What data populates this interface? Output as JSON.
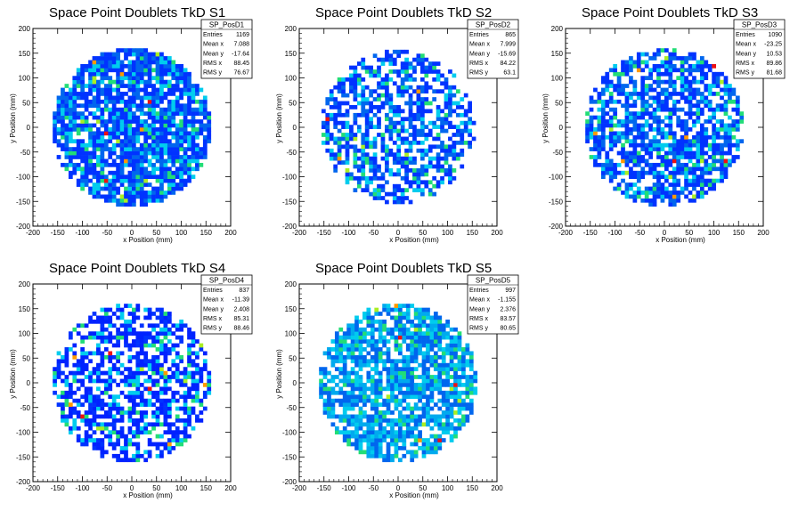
{
  "chart_data": [
    {
      "type": "heatmap",
      "title": "Space Point Doublets TkD S1",
      "stats_name": "SP_PosD1",
      "stats": [
        {
          "label": "Entries",
          "value": "1169"
        },
        {
          "label": "Mean x",
          "value": "7.088"
        },
        {
          "label": "Mean y",
          "value": "-17.64"
        },
        {
          "label": "RMS x",
          "value": "88.45"
        },
        {
          "label": "RMS y",
          "value": "76.67"
        }
      ],
      "xlabel": "x Position (mm)",
      "ylabel": "y Position (mm)",
      "xlim": [
        -200,
        200
      ],
      "ylim": [
        -200,
        200
      ],
      "xticks": [
        "-200",
        "-150",
        "-100",
        "-50",
        "0",
        "50",
        "100",
        "150",
        "200"
      ],
      "yticks": [
        "-200",
        "-150",
        "-100",
        "-50",
        "0",
        "50",
        "100",
        "150",
        "200"
      ],
      "bin_size": 8,
      "occupied_radius": 160,
      "fill_fraction": 0.82,
      "hot_fraction": 0.08,
      "colorscale": [
        "#0033ff",
        "#0066ee",
        "#00ccee",
        "#22dd77",
        "#aaee22",
        "#ff9900",
        "#ee1111"
      ]
    },
    {
      "type": "heatmap",
      "title": "Space Point Doublets TkD S2",
      "stats_name": "SP_PosD2",
      "stats": [
        {
          "label": "Entries",
          "value": "865"
        },
        {
          "label": "Mean x",
          "value": "7.999"
        },
        {
          "label": "Mean y",
          "value": "-15.69"
        },
        {
          "label": "RMS x",
          "value": "84.22"
        },
        {
          "label": "RMS y",
          "value": "63.1"
        }
      ],
      "xlabel": "x Position (mm)",
      "ylabel": "y Position (mm)",
      "xlim": [
        -200,
        200
      ],
      "ylim": [
        -200,
        200
      ],
      "xticks": [
        "-200",
        "-150",
        "-100",
        "-50",
        "0",
        "50",
        "100",
        "150",
        "200"
      ],
      "yticks": [
        "-200",
        "-150",
        "-100",
        "-50",
        "0",
        "50",
        "100",
        "150",
        "200"
      ],
      "bin_size": 8,
      "occupied_radius": 155,
      "fill_fraction": 0.58,
      "hot_fraction": 0.06,
      "colorscale": [
        "#0033ff",
        "#0066ee",
        "#00ccee",
        "#22dd77",
        "#aaee22",
        "#ff9900",
        "#ee1111"
      ]
    },
    {
      "type": "heatmap",
      "title": "Space Point Doublets TkD S3",
      "stats_name": "SP_PosD3",
      "stats": [
        {
          "label": "Entries",
          "value": "1090"
        },
        {
          "label": "Mean x",
          "value": "-23.25"
        },
        {
          "label": "Mean y",
          "value": "10.53"
        },
        {
          "label": "RMS x",
          "value": "89.86"
        },
        {
          "label": "RMS y",
          "value": "81.68"
        }
      ],
      "xlabel": "x Position (mm)",
      "ylabel": "y Position (mm)",
      "xlim": [
        -200,
        200
      ],
      "ylim": [
        -200,
        200
      ],
      "xticks": [
        "-200",
        "-150",
        "-100",
        "-50",
        "0",
        "50",
        "100",
        "150",
        "200"
      ],
      "yticks": [
        "-200",
        "-150",
        "-100",
        "-50",
        "0",
        "50",
        "100",
        "150",
        "200"
      ],
      "bin_size": 8,
      "occupied_radius": 160,
      "fill_fraction": 0.7,
      "hot_fraction": 0.1,
      "colorscale": [
        "#0033ff",
        "#0066ee",
        "#00ccee",
        "#22dd77",
        "#aaee22",
        "#ff9900",
        "#ee1111"
      ]
    },
    {
      "type": "heatmap",
      "title": "Space Point Doublets TkD S4",
      "stats_name": "SP_PosD4",
      "stats": [
        {
          "label": "Entries",
          "value": "837"
        },
        {
          "label": "Mean x",
          "value": "-11.39"
        },
        {
          "label": "Mean y",
          "value": "2.408"
        },
        {
          "label": "RMS x",
          "value": "85.31"
        },
        {
          "label": "RMS y",
          "value": "88.46"
        }
      ],
      "xlabel": "x Position (mm)",
      "ylabel": "y Position (mm)",
      "xlim": [
        -200,
        200
      ],
      "ylim": [
        -200,
        200
      ],
      "xticks": [
        "-200",
        "-150",
        "-100",
        "-50",
        "0",
        "50",
        "100",
        "150",
        "200"
      ],
      "yticks": [
        "-200",
        "-150",
        "-100",
        "-50",
        "0",
        "50",
        "100",
        "150",
        "200"
      ],
      "bin_size": 8,
      "occupied_radius": 160,
      "fill_fraction": 0.62,
      "hot_fraction": 0.05,
      "colorscale": [
        "#0022ff",
        "#0033ff",
        "#00ccee",
        "#22dd77",
        "#aaee22",
        "#ff9900",
        "#ee1111"
      ]
    },
    {
      "type": "heatmap",
      "title": "Space Point Doublets TkD S5",
      "stats_name": "SP_PosD5",
      "stats": [
        {
          "label": "Entries",
          "value": "997"
        },
        {
          "label": "Mean x",
          "value": "-1.155"
        },
        {
          "label": "Mean y",
          "value": "2.376"
        },
        {
          "label": "RMS x",
          "value": "83.57"
        },
        {
          "label": "RMS y",
          "value": "80.65"
        }
      ],
      "xlabel": "x Position (mm)",
      "ylabel": "y Position (mm)",
      "xlim": [
        -200,
        200
      ],
      "ylim": [
        -200,
        200
      ],
      "xticks": [
        "-200",
        "-150",
        "-100",
        "-50",
        "0",
        "50",
        "100",
        "150",
        "200"
      ],
      "yticks": [
        "-200",
        "-150",
        "-100",
        "-50",
        "0",
        "50",
        "100",
        "150",
        "200"
      ],
      "bin_size": 8,
      "occupied_radius": 160,
      "fill_fraction": 0.75,
      "hot_fraction": 0.18,
      "colorscale": [
        "#0066ee",
        "#00aaee",
        "#00ccee",
        "#22dd77",
        "#aaee22",
        "#ff9900",
        "#ee1111"
      ]
    }
  ]
}
